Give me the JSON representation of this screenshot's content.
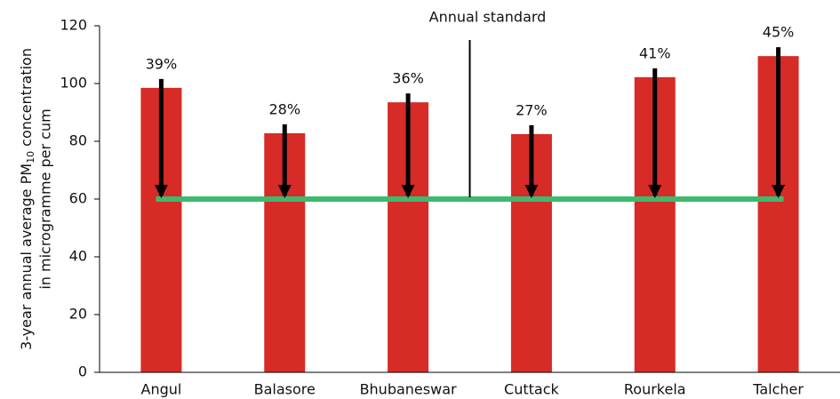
{
  "chart_data": {
    "type": "bar",
    "y_label": {
      "line1": "3-year annual average PM",
      "subscript": "10",
      "line1_end": " concentration",
      "line2": "in microgramme per cum"
    },
    "categories": [
      "Angul",
      "Balasore",
      "Bhubaneswar",
      "Cuttack",
      "Rourkela",
      "Talcher"
    ],
    "values": [
      98.5,
      82.8,
      93.5,
      82.5,
      102.2,
      109.5
    ],
    "reduction_labels": [
      "39%",
      "28%",
      "36%",
      "27%",
      "41%",
      "45%"
    ],
    "reduction_values": [
      39,
      28,
      36,
      27,
      41,
      45
    ],
    "color": "#d72b27",
    "standard": {
      "label": "Annual standard",
      "value": 60,
      "color": "#3dba6e"
    },
    "ylim": [
      0,
      120
    ],
    "yticks": [
      0,
      20,
      40,
      60,
      80,
      100,
      120
    ],
    "grid": false
  }
}
